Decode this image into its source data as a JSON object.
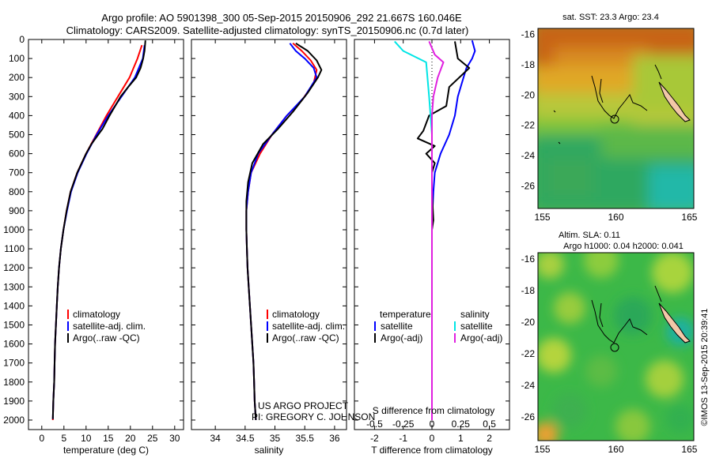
{
  "header": {
    "line1": "Argo profile: AO 5901398_300 05-Sep-2015 20150906_292 21.667S 160.046E",
    "line2": "Climatology: CARS2009. Satellite-adjusted climatology: synTS_20150906.nc (0.7d later)"
  },
  "colors": {
    "climatology": "#ff0000",
    "satellite": "#0000ff",
    "argo": "#000000",
    "sat_salinity": "#00e5e5",
    "argo_salinity": "#e020e0"
  },
  "chart_data": [
    {
      "type": "line",
      "xlabel": "temperature (deg C)",
      "xlim": [
        -3,
        32
      ],
      "xticks": [
        "0",
        "5",
        "10",
        "15",
        "20",
        "25",
        "30"
      ],
      "ylim": [
        0,
        2050
      ],
      "yticks": [
        "0",
        "100",
        "200",
        "300",
        "400",
        "500",
        "600",
        "700",
        "800",
        "900",
        "1000",
        "1100",
        "1200",
        "1300",
        "1400",
        "1500",
        "1600",
        "1700",
        "1800",
        "1900",
        "2000"
      ],
      "legend": [
        "climatology",
        "satellite-adj. clim.",
        "Argo(..raw -QC)"
      ],
      "legend_placement": "lower-center",
      "series": [
        {
          "name": "climatology",
          "color": "#ff0000",
          "points": [
            [
              22.6,
              30
            ],
            [
              21.6,
              100
            ],
            [
              19.8,
              200
            ],
            [
              17.2,
              300
            ],
            [
              14.6,
              400
            ],
            [
              12.3,
              500
            ],
            [
              10,
              600
            ],
            [
              8,
              700
            ],
            [
              6.5,
              800
            ],
            [
              5.6,
              900
            ],
            [
              4.9,
              1000
            ],
            [
              4.3,
              1100
            ],
            [
              3.9,
              1200
            ],
            [
              3.6,
              1300
            ],
            [
              3.4,
              1400
            ],
            [
              3.2,
              1500
            ],
            [
              3,
              1600
            ],
            [
              2.9,
              1700
            ],
            [
              2.8,
              1800
            ],
            [
              2.6,
              1900
            ],
            [
              2.5,
              2000
            ]
          ]
        },
        {
          "name": "satellite-adj. clim.",
          "color": "#0000ff",
          "points": [
            [
              23.2,
              30
            ],
            [
              22.8,
              100
            ],
            [
              21,
              200
            ],
            [
              18,
              300
            ],
            [
              15,
              400
            ],
            [
              12.4,
              500
            ],
            [
              10.1,
              600
            ],
            [
              8.1,
              700
            ],
            [
              6.6,
              800
            ],
            [
              5.7,
              900
            ],
            [
              4.9,
              1000
            ],
            [
              4.3,
              1100
            ],
            [
              3.9,
              1200
            ],
            [
              3.6,
              1300
            ],
            [
              3.4,
              1400
            ],
            [
              3.2,
              1500
            ],
            [
              3,
              1600
            ],
            [
              2.9,
              1700
            ],
            [
              2.8,
              1800
            ],
            [
              2.6,
              1900
            ],
            [
              2.5,
              1995
            ]
          ]
        },
        {
          "name": "Argo(..raw -QC)",
          "color": "#000000",
          "points": [
            [
              23.4,
              5
            ],
            [
              23.2,
              60
            ],
            [
              22.9,
              100
            ],
            [
              22.3,
              150
            ],
            [
              21.3,
              200
            ],
            [
              19.5,
              250
            ],
            [
              17.8,
              300
            ],
            [
              15.3,
              400
            ],
            [
              13.7,
              470
            ],
            [
              11.2,
              550
            ],
            [
              10,
              600
            ],
            [
              8,
              700
            ],
            [
              6.5,
              800
            ],
            [
              5.6,
              900
            ],
            [
              4.9,
              1000
            ],
            [
              4.3,
              1100
            ],
            [
              3.9,
              1200
            ],
            [
              3.6,
              1300
            ],
            [
              3.4,
              1400
            ],
            [
              3.2,
              1500
            ],
            [
              3,
              1600
            ],
            [
              2.9,
              1700
            ],
            [
              2.8,
              1800
            ],
            [
              2.6,
              1900
            ],
            [
              2.5,
              1995
            ]
          ]
        }
      ]
    },
    {
      "type": "line",
      "xlabel": "salinity",
      "xlim": [
        33.6,
        36.2
      ],
      "xticks": [
        "34",
        "34.5",
        "35",
        "35.5",
        "36"
      ],
      "ylim": [
        0,
        2050
      ],
      "legend": [
        "climatology",
        "satellite-adj. clim.",
        "Argo(..raw -QC)"
      ],
      "legend_placement": "lower-center",
      "series": [
        {
          "name": "climatology",
          "color": "#ff0000",
          "points": [
            [
              35.3,
              20
            ],
            [
              35.45,
              60
            ],
            [
              35.6,
              110
            ],
            [
              35.7,
              160
            ],
            [
              35.65,
              230
            ],
            [
              35.45,
              320
            ],
            [
              35.2,
              400
            ],
            [
              34.95,
              500
            ],
            [
              34.75,
              600
            ],
            [
              34.6,
              700
            ],
            [
              34.55,
              800
            ],
            [
              34.52,
              900
            ],
            [
              34.52,
              1000
            ],
            [
              34.53,
              1100
            ],
            [
              34.54,
              1200
            ],
            [
              34.56,
              1300
            ],
            [
              34.58,
              1400
            ],
            [
              34.6,
              1500
            ],
            [
              34.62,
              1600
            ],
            [
              34.64,
              1700
            ],
            [
              34.65,
              1800
            ],
            [
              34.66,
              1900
            ],
            [
              34.68,
              2000
            ]
          ]
        },
        {
          "name": "satellite-adj. clim.",
          "color": "#0000ff",
          "points": [
            [
              35.25,
              20
            ],
            [
              35.35,
              60
            ],
            [
              35.5,
              100
            ],
            [
              35.65,
              150
            ],
            [
              35.7,
              200
            ],
            [
              35.5,
              300
            ],
            [
              35.2,
              400
            ],
            [
              34.95,
              500
            ],
            [
              34.72,
              600
            ],
            [
              34.6,
              700
            ],
            [
              34.55,
              800
            ],
            [
              34.52,
              900
            ],
            [
              34.52,
              1000
            ],
            [
              34.53,
              1100
            ],
            [
              34.54,
              1200
            ],
            [
              34.56,
              1300
            ],
            [
              34.58,
              1400
            ],
            [
              34.6,
              1500
            ],
            [
              34.62,
              1600
            ],
            [
              34.64,
              1700
            ],
            [
              34.65,
              1800
            ],
            [
              34.66,
              1900
            ],
            [
              34.68,
              2000
            ]
          ]
        },
        {
          "name": "Argo(..raw -QC)",
          "color": "#000000",
          "points": [
            [
              35.35,
              20
            ],
            [
              35.55,
              60
            ],
            [
              35.7,
              110
            ],
            [
              35.78,
              160
            ],
            [
              35.72,
              200
            ],
            [
              35.55,
              280
            ],
            [
              35.3,
              380
            ],
            [
              35.05,
              470
            ],
            [
              34.8,
              550
            ],
            [
              34.62,
              650
            ],
            [
              34.55,
              750
            ],
            [
              34.52,
              850
            ],
            [
              34.52,
              1000
            ],
            [
              34.53,
              1100
            ],
            [
              34.54,
              1200
            ],
            [
              34.56,
              1300
            ],
            [
              34.58,
              1400
            ],
            [
              34.6,
              1500
            ],
            [
              34.62,
              1600
            ],
            [
              34.64,
              1700
            ],
            [
              34.65,
              1800
            ],
            [
              34.66,
              1900
            ],
            [
              34.68,
              2000
            ]
          ]
        }
      ],
      "annotation": [
        "US ARGO PROJECT",
        "PI: GREGORY C. JOHNSON"
      ]
    },
    {
      "type": "line",
      "xlabel": "T difference from climatology",
      "xlabel_top": "S difference from climatology",
      "xlim": [
        -2.7,
        2.7
      ],
      "xticks": [
        "-2",
        "-1",
        "0",
        "1",
        "2"
      ],
      "sticks": [
        "-0.5",
        "-0.25",
        "0",
        "0.25",
        "0.5"
      ],
      "ylim": [
        0,
        2050
      ],
      "legend_temperature_title": "temperature",
      "legend_salinity_title": "salinity",
      "legend_temperature": [
        "satellite",
        "Argo(-adj)"
      ],
      "legend_salinity": [
        "satellite",
        "Argo(-adj)"
      ],
      "series": [
        {
          "name": "satellite",
          "color": "#0000ff",
          "points": [
            [
              1.4,
              5
            ],
            [
              1.5,
              60
            ],
            [
              1.4,
              100
            ],
            [
              1.2,
              150
            ],
            [
              1.1,
              200
            ],
            [
              0.9,
              300
            ],
            [
              0.8,
              400
            ],
            [
              0.6,
              500
            ],
            [
              0.3,
              600
            ],
            [
              0.1,
              700
            ],
            [
              0.05,
              800
            ],
            [
              0.02,
              900
            ],
            [
              0,
              1000
            ],
            [
              0,
              1500
            ],
            [
              0,
              2000
            ]
          ]
        },
        {
          "name": "Argo(-adj)",
          "color": "#000000",
          "points": [
            [
              0.8,
              10
            ],
            [
              0.9,
              100
            ],
            [
              1.3,
              150
            ],
            [
              0.6,
              250
            ],
            [
              0.5,
              350
            ],
            [
              -0.1,
              400
            ],
            [
              -0.3,
              480
            ],
            [
              -0.5,
              520
            ],
            [
              0.1,
              560
            ],
            [
              -0.2,
              600
            ],
            [
              0.1,
              650
            ],
            [
              0,
              700
            ],
            [
              0,
              800
            ],
            [
              0.05,
              950
            ],
            [
              0,
              1000
            ],
            [
              0,
              1500
            ],
            [
              0,
              2000
            ]
          ]
        },
        {
          "name": "satellite",
          "color": "#00e5e5",
          "points": [
            [
              -1.3,
              10
            ],
            [
              -1.0,
              60
            ],
            [
              -0.2,
              120
            ],
            [
              -0.1,
              300
            ],
            [
              0,
              500
            ],
            [
              0,
              1000
            ],
            [
              0,
              2000
            ]
          ]
        },
        {
          "name": "Argo(-adj)",
          "color": "#e020e0",
          "points": [
            [
              -0.1,
              10
            ],
            [
              0.1,
              80
            ],
            [
              0.4,
              120
            ],
            [
              0.2,
              200
            ],
            [
              0.05,
              300
            ],
            [
              0,
              400
            ],
            [
              0,
              1500
            ],
            [
              0,
              2000
            ]
          ]
        }
      ]
    },
    {
      "type": "heatmap",
      "title": "sat. SST: 23.3 Argo: 23.4",
      "xticks": [
        "155",
        "160",
        "165"
      ],
      "yticks": [
        "-16",
        "-18",
        "-20",
        "-22",
        "-24",
        "-26"
      ],
      "xlim": [
        154.7,
        165.3
      ],
      "ylim": [
        -27.5,
        -15.6
      ],
      "float_position": [
        160.046,
        -21.667
      ]
    },
    {
      "type": "heatmap",
      "title_line1": "Altim. SLA: 0.11",
      "title_line2": "Argo h1000: 0.04 h2000: 0.041",
      "xticks": [
        "155",
        "160",
        "165"
      ],
      "yticks": [
        "-16",
        "-18",
        "-20",
        "-22",
        "-24",
        "-26"
      ],
      "xlim": [
        154.7,
        165.3
      ],
      "ylim": [
        -27.5,
        -15.6
      ],
      "float_position": [
        160.046,
        -21.667
      ]
    }
  ],
  "footer_stamp": "©IMOS 13-Sep-2015 20:39:41"
}
